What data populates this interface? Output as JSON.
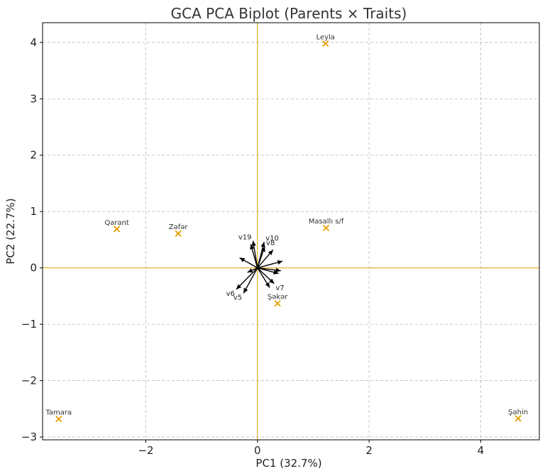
{
  "chart_data": {
    "type": "scatter",
    "title": "GCA PCA Biplot (Parents × Traits)",
    "xlabel": "PC1 (32.7%)",
    "ylabel": "PC2 (22.7%)",
    "xlim": [
      -3.85,
      5.05
    ],
    "ylim": [
      -3.05,
      4.35
    ],
    "xticks": [
      -2,
      0,
      2,
      4
    ],
    "xtick_labels": [
      "−2",
      "0",
      "2",
      "4"
    ],
    "yticks": [
      -3,
      -2,
      -1,
      0,
      1,
      2,
      3,
      4
    ],
    "ytick_labels": [
      "−3",
      "−2",
      "−1",
      "0",
      "1",
      "2",
      "3",
      "4"
    ],
    "grid": true,
    "colors": {
      "points": "#e69f00",
      "reference_lines": "#e6a000",
      "vectors": "#000000"
    },
    "points": [
      {
        "label": "Leyla",
        "x": 1.22,
        "y": 3.98
      },
      {
        "label": "Qarant",
        "x": -2.52,
        "y": 0.69
      },
      {
        "label": "Zəfər",
        "x": -1.42,
        "y": 0.61
      },
      {
        "label": "Masallı s/f",
        "x": 1.23,
        "y": 0.71
      },
      {
        "label": "Şəkər",
        "x": 0.36,
        "y": -0.63
      },
      {
        "label": "Tamara",
        "x": -3.56,
        "y": -2.68
      },
      {
        "label": "Şahin",
        "x": 4.67,
        "y": -2.67
      }
    ],
    "vectors": [
      {
        "label": "v19",
        "x": -0.08,
        "y": 0.48
      },
      {
        "label": "v10",
        "x": 0.12,
        "y": 0.46
      },
      {
        "label": "v8",
        "x": 0.13,
        "y": 0.38
      },
      {
        "label": "",
        "x": -0.12,
        "y": 0.42
      },
      {
        "label": "",
        "x": 0.28,
        "y": 0.32
      },
      {
        "label": "",
        "x": -0.32,
        "y": 0.18
      },
      {
        "label": "",
        "x": 0.45,
        "y": 0.12
      },
      {
        "label": "",
        "x": 0.42,
        "y": -0.05
      },
      {
        "label": "",
        "x": 0.38,
        "y": -0.1
      },
      {
        "label": "",
        "x": -0.18,
        "y": -0.08
      },
      {
        "label": "v7",
        "x": 0.3,
        "y": -0.28
      },
      {
        "label": "",
        "x": 0.22,
        "y": -0.35
      },
      {
        "label": "v6",
        "x": -0.38,
        "y": -0.38
      },
      {
        "label": "v5",
        "x": -0.25,
        "y": -0.45
      }
    ]
  }
}
